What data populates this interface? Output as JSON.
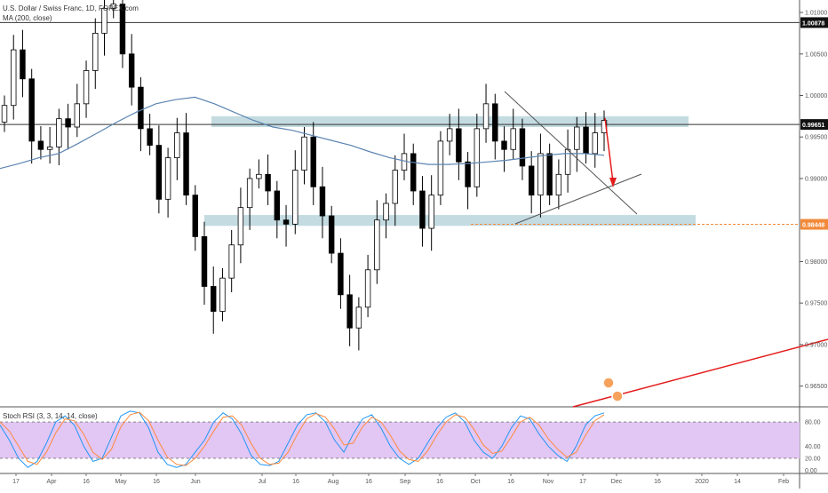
{
  "header": {
    "symbol_title": "U.S. Dollar / Swiss Franc, 1D, FOREX.com",
    "ma_label": "MA (200, close)",
    "rsi_label": "Stoch RSI (3, 3, 14, 14, close)"
  },
  "colors": {
    "up_candle": "#ffffff",
    "down_candle": "#000000",
    "ma_line": "#5b84b1",
    "zone": "#b9d5dc",
    "trend_red": "#e31b1b",
    "support_dash": "#f28a3a",
    "rsi_band": "#e2c6f4",
    "rsi_k": "#2196f3",
    "rsi_d": "#ff8a3d"
  },
  "chart_data": [
    {
      "type": "candlestick",
      "title": "U.S. Dollar / Swiss Franc, 1D, FOREX.com",
      "x_ticks": [
        "17",
        "Apr",
        "16",
        "May",
        "16",
        "Jun",
        "Jul",
        "16",
        "Aug",
        "16",
        "Sep",
        "16",
        "Oct",
        "16",
        "Nov",
        "17",
        "Dec",
        "16",
        "2020",
        "14",
        "Feb"
      ],
      "y_ticks": [
        "1.01000",
        "1.00500",
        "1.00000",
        "0.99500",
        "0.99000",
        "0.98000",
        "0.97500",
        "0.97000",
        "0.96500"
      ],
      "ylim": [
        0.9625,
        1.0115
      ],
      "price_labels": [
        {
          "label": "1.00878",
          "value": 1.00878,
          "style": "black"
        },
        {
          "label": "0.99651",
          "value": 0.99651,
          "style": "black"
        },
        {
          "label": "0.98448",
          "value": 0.98448,
          "style": "orange"
        }
      ],
      "close_series": [
        0.9988,
        1.0055,
        1.002,
        0.9945,
        0.9935,
        0.9938,
        0.9972,
        0.9962,
        0.999,
        1.003,
        1.0075,
        1.0105,
        1.011,
        1.005,
        1.001,
        0.996,
        0.994,
        0.9875,
        0.9925,
        0.9955,
        0.988,
        0.983,
        0.977,
        0.974,
        0.978,
        0.982,
        0.9865,
        0.99,
        0.9905,
        0.9885,
        0.985,
        0.9845,
        0.991,
        0.995,
        0.989,
        0.9855,
        0.981,
        0.976,
        0.972,
        0.9745,
        0.979,
        0.985,
        0.987,
        0.991,
        0.993,
        0.9885,
        0.984,
        0.988,
        0.9945,
        0.996,
        0.992,
        0.989,
        0.996,
        0.999,
        0.9945,
        0.9935,
        0.996,
        0.9915,
        0.988,
        0.993,
        0.988,
        0.9905,
        0.9935,
        0.9962,
        0.993,
        0.9955,
        0.997
      ],
      "series": [
        {
          "name": "MA (200, close)",
          "values": [
            0.9912,
            0.9918,
            0.9925,
            0.993,
            0.9942,
            0.9955,
            0.9968,
            0.998,
            0.999,
            0.9995,
            0.9998,
            0.999,
            0.998,
            0.997,
            0.9962,
            0.9958,
            0.9952,
            0.9946,
            0.994,
            0.9932,
            0.9925,
            0.992,
            0.9917,
            0.9917,
            0.9918,
            0.992,
            0.9922,
            0.9925,
            0.9928,
            0.993,
            0.993,
            0.9928
          ]
        }
      ],
      "horizontal_lines": [
        1.00878,
        0.99651,
        0.98448
      ],
      "zones": [
        {
          "from": 0.9962,
          "to": 0.9975
        },
        {
          "from": 0.9843,
          "to": 0.9856
        }
      ]
    },
    {
      "type": "line",
      "title": "Stoch RSI (3, 3, 14, 14, close)",
      "y_ticks": [
        "80.00",
        "40.00",
        "20.00",
        "0.00"
      ],
      "ylim": [
        -5,
        105
      ],
      "band": [
        20,
        80
      ],
      "series": [
        {
          "name": "K",
          "values": [
            75,
            50,
            20,
            5,
            15,
            45,
            80,
            90,
            75,
            40,
            15,
            20,
            55,
            90,
            98,
            95,
            70,
            30,
            10,
            5,
            10,
            30,
            50,
            80,
            95,
            85,
            60,
            25,
            10,
            8,
            15,
            45,
            75,
            92,
            95,
            80,
            50,
            30,
            60,
            85,
            92,
            70,
            40,
            20,
            10,
            20,
            45,
            70,
            88,
            95,
            80,
            50,
            30,
            20,
            40,
            70,
            90,
            85,
            60,
            40,
            25,
            15,
            40,
            75,
            90,
            95
          ]
        },
        {
          "name": "D",
          "values": [
            80,
            65,
            40,
            15,
            10,
            30,
            62,
            85,
            82,
            60,
            30,
            18,
            35,
            72,
            92,
            96,
            82,
            50,
            22,
            10,
            8,
            20,
            40,
            65,
            88,
            90,
            75,
            45,
            20,
            10,
            12,
            30,
            60,
            85,
            94,
            88,
            68,
            42,
            45,
            72,
            88,
            80,
            58,
            32,
            18,
            15,
            32,
            58,
            80,
            92,
            88,
            68,
            42,
            28,
            32,
            55,
            80,
            88,
            75,
            52,
            35,
            22,
            30,
            58,
            82,
            92
          ]
        }
      ]
    }
  ]
}
